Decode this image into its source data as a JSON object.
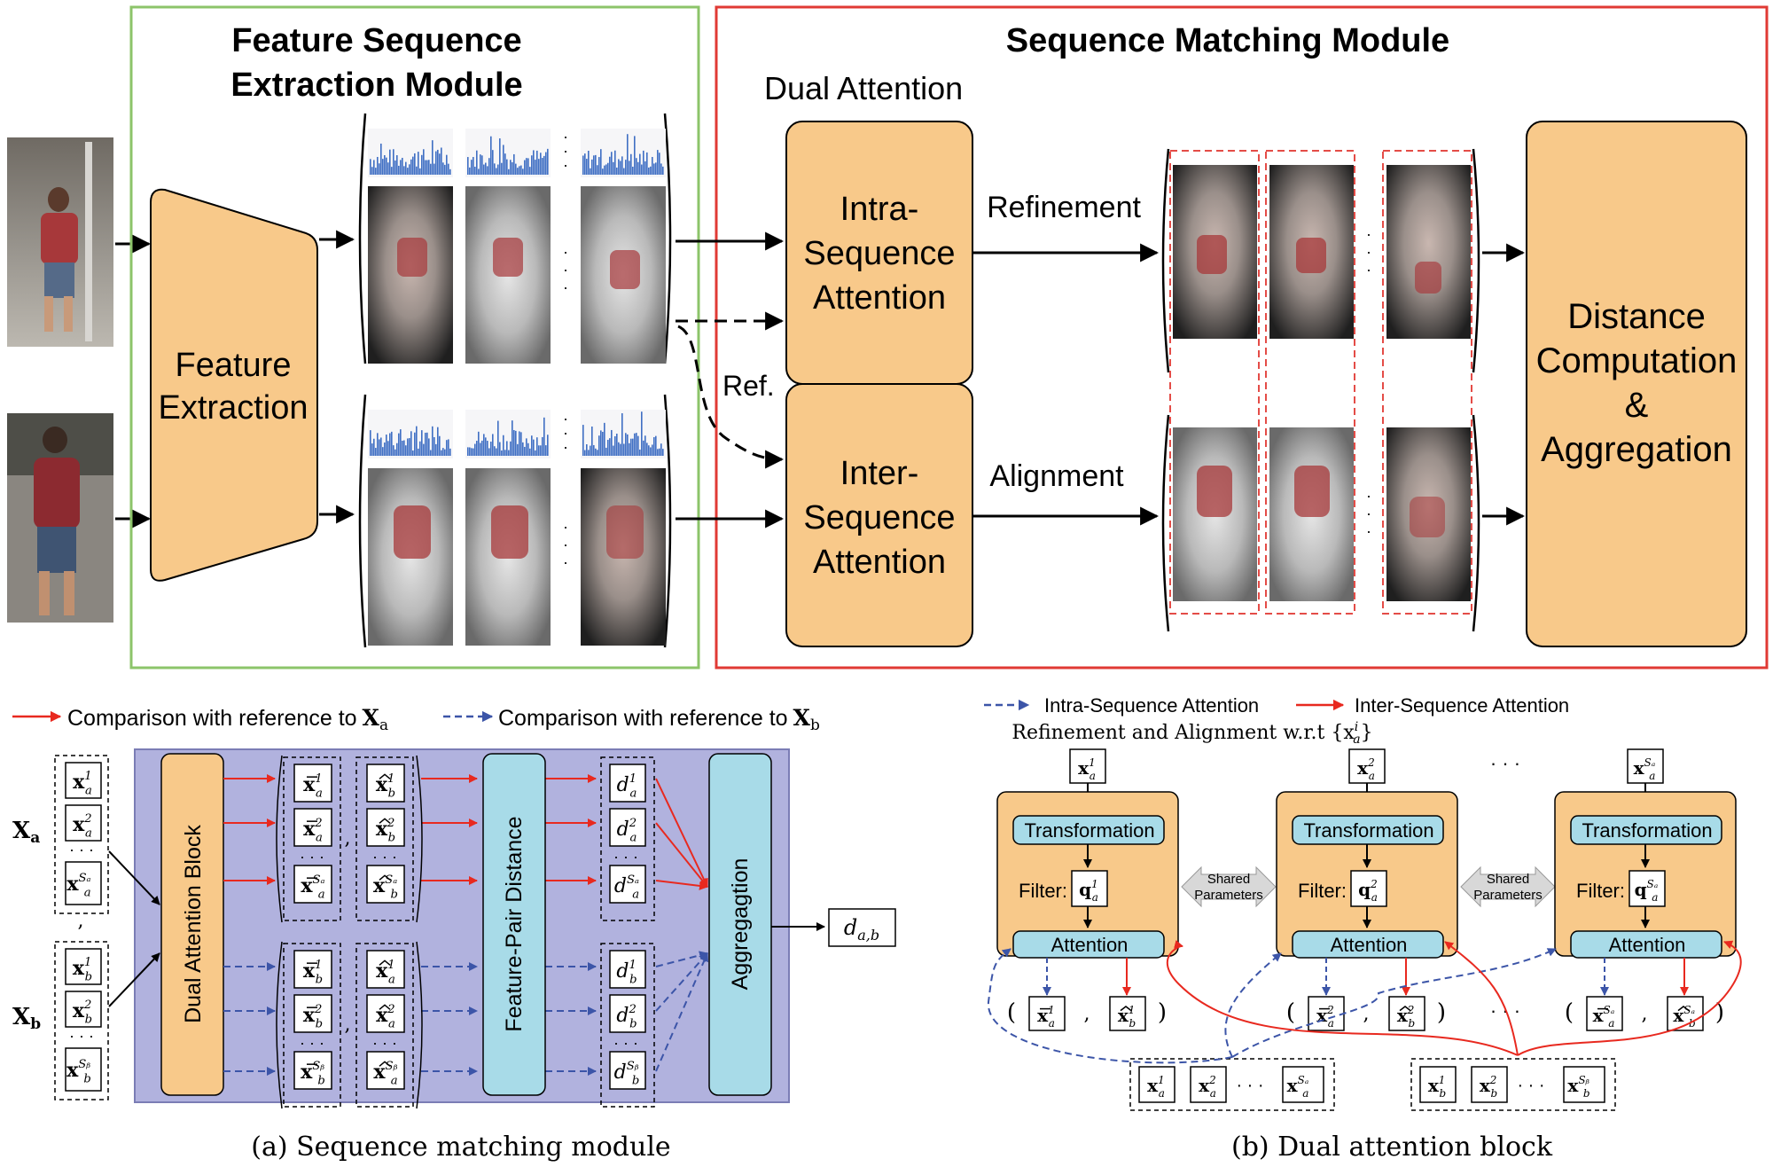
{
  "top": {
    "fse_title_line1": "Feature Sequence",
    "fse_title_line2": "Extraction Module",
    "smm_title": "Sequence Matching Module",
    "dual_attention": "Dual Attention",
    "feature_extraction_line1": "Feature",
    "feature_extraction_line2": "Extraction",
    "intra_line1": "Intra-",
    "intra_line2": "Sequence",
    "intra_line3": "Attention",
    "inter_line1": "Inter-",
    "inter_line2": "Sequence",
    "inter_line3": "Attention",
    "refinement": "Refinement",
    "alignment": "Alignment",
    "ref": "Ref.",
    "distance_line1": "Distance",
    "distance_line2": "Computation",
    "distance_line3": "&",
    "distance_line4": "Aggregation",
    "colors": {
      "green_border": "#8cc46a",
      "red_border": "#e03a34",
      "orange_fill": "#f8c98a",
      "dashed_red": "#e44c47",
      "histogram_blue": "#3f6fc4"
    }
  },
  "left_panel": {
    "legend_red": "Comparison with reference to",
    "legend_red_sym": "X",
    "legend_red_sub": "a",
    "legend_blue": "Comparison with reference to",
    "legend_blue_sym": "X",
    "legend_blue_sub": "b",
    "xa_label": "X",
    "xa_sub": "a",
    "xb_label": "X",
    "xb_sub": "b",
    "dual_block": "Dual Attention Block",
    "feature_pair": "Feature-Pair Distance",
    "aggregation": "Aggregagtion",
    "output_d": "d",
    "output_sub": "a,b",
    "comma": ",",
    "caption": "(a)  Sequence matching module",
    "colors": {
      "panel_fill": "#b1b2de",
      "orange": "#f8c98a",
      "cyan": "#a8dbe8",
      "red_arrow": "#e8291f",
      "blue_arrow": "#3c55a8"
    }
  },
  "right_panel": {
    "legend_intra": "Intra-Sequence Attention",
    "legend_inter": "Inter-Sequence Attention",
    "subtitle": "Refinement and Alignment w.r.t {x",
    "subtitle_sup": "i",
    "subtitle_sub": "a",
    "subtitle_end": "}",
    "transformation": "Transformation",
    "filter": "Filter:",
    "attention": "Attention",
    "shared_line1": "Shared",
    "shared_line2": "Parameters",
    "ellipsis": "· · ·",
    "caption": "(b)  Dual attention block",
    "colors": {
      "block_fill": "#f8c98a",
      "cyan": "#a8dbe8",
      "shared_fill": "#d8d8d8"
    }
  }
}
